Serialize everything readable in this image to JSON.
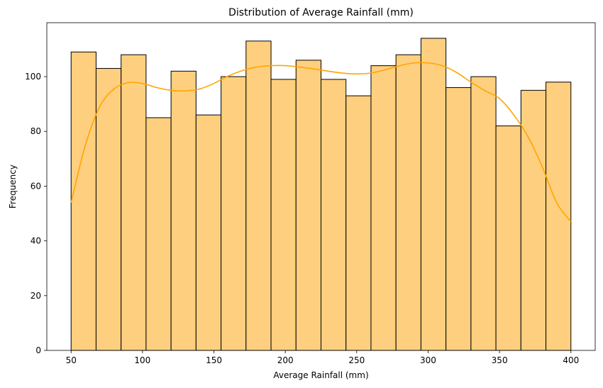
{
  "chart_data": {
    "type": "bar",
    "title": "Distribution of Average Rainfall (mm)",
    "xlabel": "Average Rainfall (mm)",
    "ylabel": "Frequency",
    "bin_edges": [
      50,
      67.5,
      85,
      102.5,
      120,
      137.5,
      155,
      172.5,
      190,
      207.5,
      225,
      242.5,
      260,
      277.5,
      295,
      312.5,
      330,
      347.5,
      365,
      382.5,
      400
    ],
    "values": [
      109,
      103,
      108,
      85,
      102,
      86,
      100,
      113,
      99,
      106,
      99,
      93,
      104,
      108,
      114,
      96,
      100,
      82,
      95,
      98
    ],
    "xlim": [
      33,
      417
    ],
    "ylim": [
      0,
      119.7
    ],
    "x_ticks": [
      50,
      100,
      150,
      200,
      250,
      300,
      350,
      400
    ],
    "y_ticks": [
      0,
      20,
      40,
      60,
      80,
      100
    ],
    "grid": false,
    "legend": "none",
    "bar_color": "#fecf7e",
    "bar_edge_color": "#000000",
    "kde": {
      "name": "density curve",
      "color": "#ffa500",
      "x": [
        50,
        60,
        70,
        80,
        90,
        100,
        110,
        120,
        130,
        140,
        150,
        160,
        170,
        180,
        190,
        200,
        210,
        220,
        230,
        240,
        250,
        260,
        270,
        280,
        290,
        300,
        310,
        320,
        330,
        340,
        350,
        360,
        370,
        380,
        390,
        400
      ],
      "y": [
        54,
        75,
        89,
        95.5,
        97.8,
        97.5,
        96,
        95,
        94.8,
        95.5,
        97.5,
        100.2,
        102.2,
        103.5,
        104,
        104,
        103.5,
        102.8,
        102,
        101.3,
        101,
        101.3,
        102.5,
        104,
        105,
        105,
        104,
        101.5,
        98,
        94.8,
        92,
        86,
        78,
        67,
        54,
        47
      ]
    }
  }
}
